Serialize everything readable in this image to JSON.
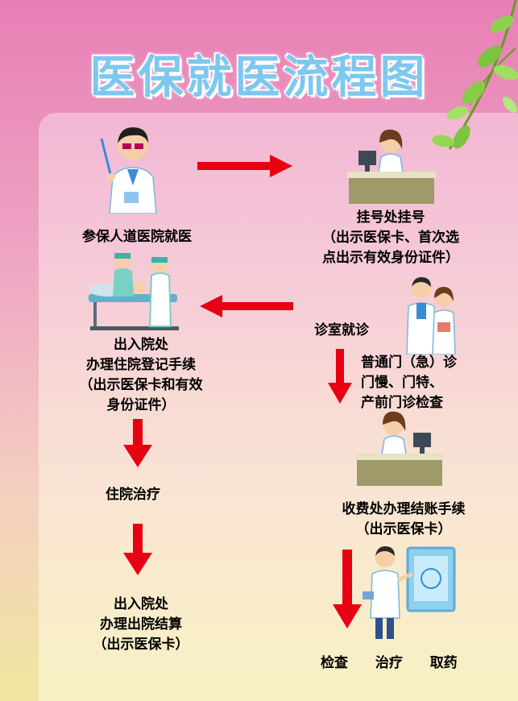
{
  "title": "医保就医流程图",
  "steps": {
    "s1": "参保人道医院就医",
    "s2": [
      "挂号处挂号",
      "（出示医保卡、首次选",
      "点出示有效身份证件）"
    ],
    "s3": "诊室就诊",
    "s4": [
      "普通门（急）诊",
      "门慢、门特、",
      "产前门诊检查"
    ],
    "s5": [
      "出入院处",
      "办理住院登记手续",
      "（出示医保卡和有效",
      "身份证件）"
    ],
    "s6": "住院治疗",
    "s7": [
      "出入院处",
      "办理出院结算",
      "（出示医保卡）"
    ],
    "s8": [
      "收费处办理结账手续",
      "（出示医保卡）"
    ],
    "s9": [
      "检查",
      "治疗",
      "取药"
    ]
  },
  "colors": {
    "arrow": "#e60012",
    "title": "#7ec8ef"
  },
  "icons": [
    "doctor-pointer",
    "receptionist-desk",
    "medical-staff-patient",
    "doctors-pair",
    "cashier-desk",
    "doctor-screen",
    "leaf-branch"
  ]
}
